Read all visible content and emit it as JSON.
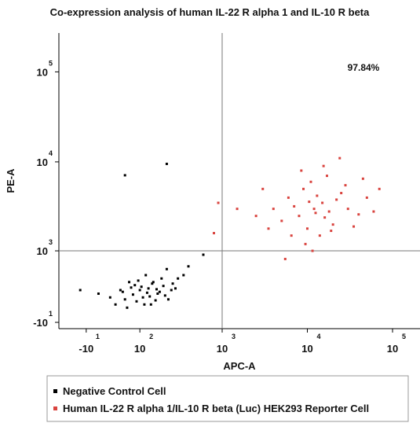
{
  "chart_data": {
    "type": "scatter",
    "title": "Co-expression analysis of human IL-22 R alpha 1 and IL-10 R beta",
    "x_label": "APC-A",
    "y_label": "PE-A",
    "scale": "biexponential",
    "annotation": "97.84%",
    "xlim": [
      -62,
      210000
    ],
    "ylim": [
      -65,
      270000
    ],
    "xticks": [
      {
        "value": -10,
        "label": "-10",
        "exponent": "1"
      },
      {
        "value": 100,
        "label": "10",
        "exponent": "2"
      },
      {
        "value": 1000,
        "label": "10",
        "exponent": "3"
      },
      {
        "value": 10000,
        "label": "10",
        "exponent": "4"
      },
      {
        "value": 100000,
        "label": "10",
        "exponent": "5"
      }
    ],
    "yticks": [
      {
        "value": -10,
        "label": "-10",
        "exponent": "1"
      },
      {
        "value": 1000,
        "label": "10",
        "exponent": "3"
      },
      {
        "value": 10000,
        "label": "10",
        "exponent": "4"
      },
      {
        "value": 100000,
        "label": "10",
        "exponent": "5"
      }
    ],
    "quadrant": {
      "x": 1000,
      "y": 1000
    },
    "series": [
      {
        "name": "Negative Control Cell",
        "color": "#000000",
        "x": [
          100,
          80,
          150,
          60,
          200,
          120,
          90,
          250,
          300,
          40,
          170,
          130,
          70,
          220,
          110,
          180,
          50,
          260,
          140,
          95,
          350,
          30,
          75,
          160,
          210,
          400,
          65,
          125,
          190,
          85,
          10,
          145,
          230,
          115,
          55,
          280,
          105,
          165,
          135,
          600,
          -20,
          220,
          60
        ],
        "values": [
          300,
          250,
          400,
          200,
          350,
          500,
          180,
          300,
          450,
          150,
          260,
          320,
          400,
          600,
          220,
          280,
          300,
          380,
          150,
          420,
          500,
          220,
          330,
          190,
          240,
          650,
          120,
          270,
          450,
          360,
          260,
          380,
          200,
          150,
          280,
          320,
          340,
          310,
          230,
          900,
          300,
          9500,
          7100
        ]
      },
      {
        "name": "Human IL-22 R alpha 1/IL-10 R beta (Luc) HEK293 Reporter Cell",
        "color": "#d9443f",
        "x": [
          12000,
          8000,
          15000,
          20000,
          6000,
          10000,
          25000,
          9000,
          18000,
          5000,
          30000,
          11000,
          14000,
          7000,
          22000,
          16000,
          4000,
          13000,
          40000,
          9500,
          17000,
          3500,
          28000,
          12500,
          6500,
          50000,
          10500,
          19000,
          8500,
          3000,
          35000,
          15500,
          2500,
          45000,
          11500,
          1500,
          60000,
          24000,
          5500,
          900,
          800,
          70000
        ],
        "values": [
          3000,
          2500,
          3500,
          2000,
          4000,
          1800,
          4500,
          5000,
          2800,
          2200,
          3000,
          6000,
          1500,
          3200,
          3800,
          2400,
          3000,
          4200,
          2600,
          1200,
          7000,
          1800,
          5500,
          2700,
          1500,
          4000,
          3600,
          1700,
          8000,
          5000,
          1900,
          9000,
          2500,
          6500,
          1000,
          3000,
          2800,
          11000,
          800,
          3500,
          1600,
          5000
        ]
      }
    ]
  }
}
